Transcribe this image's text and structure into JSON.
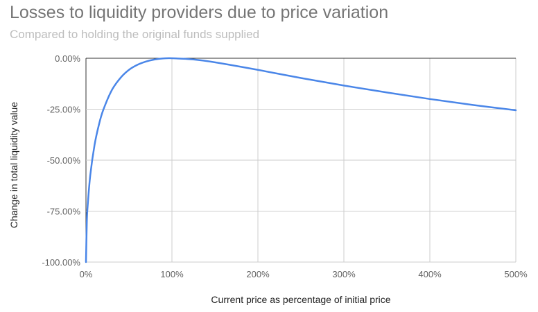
{
  "chart_data": {
    "type": "line",
    "title": "Losses to liquidity providers due to price variation",
    "subtitle": "Compared to holding the original funds supplied",
    "xlabel": "Current price as percentage of initial price",
    "ylabel": "Change in total liquidity value",
    "xlim": [
      0,
      500
    ],
    "ylim": [
      -100,
      0
    ],
    "x_ticks": [
      "0%",
      "100%",
      "200%",
      "300%",
      "400%",
      "500%"
    ],
    "y_ticks": [
      "0.00%",
      "-25.00%",
      "-50.00%",
      "-75.00%",
      "-100.00%"
    ],
    "grid": true,
    "line_color": "#4a86e8",
    "series": [
      {
        "x": [
          0,
          1,
          2,
          5,
          10,
          15,
          20,
          30,
          40,
          50,
          60,
          70,
          80,
          90,
          100,
          125,
          150,
          200,
          250,
          300,
          350,
          400,
          450,
          500
        ],
        "values": [
          -100,
          -80.2,
          -72.3,
          -57.4,
          -42.5,
          -32.7,
          -25.5,
          -15.7,
          -9.7,
          -5.7,
          -3.2,
          -1.6,
          -0.6,
          -0.1,
          0,
          -0.6,
          -2.0,
          -5.7,
          -9.7,
          -13.4,
          -16.8,
          -20.0,
          -22.9,
          -25.5
        ]
      }
    ]
  }
}
